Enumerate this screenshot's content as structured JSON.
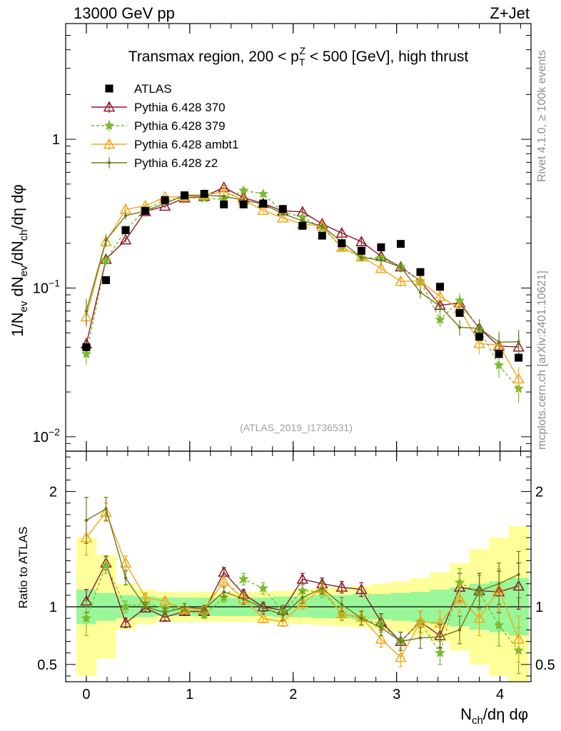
{
  "header": {
    "left": "13000 GeV pp",
    "right": "Z+Jet"
  },
  "side_labels": {
    "rivet": "Rivet 4.1.0, ≥ 100k events",
    "mcplots": "mcplots.cern.ch [arXiv:2401.10621]"
  },
  "main_title": {
    "prefix": "Transmax region, 200 < p",
    "sub": "T",
    "sup": "Z",
    "suffix": " < 500 [GeV], high thrust"
  },
  "y_label_main": {
    "a": "1/N",
    "a_sub": "ev",
    "b": " dN",
    "b_sub": "ev",
    "c": "/dN",
    "c_sub": "ch",
    "d": "/dη dφ"
  },
  "y_label_ratio": "Ratio to ATLAS",
  "x_label": {
    "n": "N",
    "sub": "ch",
    "rest": "/dη dφ"
  },
  "watermark": "(ATLAS_2019_I1736531)",
  "legend": [
    {
      "label": "ATLAS",
      "color": "#000000"
    },
    {
      "label": "Pythia 6.428 370",
      "color": "#8b1a2b"
    },
    {
      "label": "Pythia 6.428 379",
      "color": "#7cba2c"
    },
    {
      "label": "Pythia 6.428 ambt1",
      "color": "#f0a81a"
    },
    {
      "label": "Pythia 6.428 z2",
      "color": "#6b7a1a"
    }
  ],
  "chart_data": {
    "type": "line",
    "x": [
      0.0,
      0.19,
      0.38,
      0.57,
      0.76,
      0.95,
      1.14,
      1.33,
      1.52,
      1.71,
      1.9,
      2.09,
      2.28,
      2.47,
      2.66,
      2.85,
      3.04,
      3.23,
      3.42,
      3.61,
      3.8,
      3.99,
      4.18
    ],
    "x_range": [
      -0.2,
      4.3
    ],
    "x_ticks": [
      0,
      1,
      2,
      3,
      4
    ],
    "y_scale": "log",
    "y_range": [
      0.008,
      6
    ],
    "y_ticks": [
      {
        "v": 0.01,
        "base": "10",
        "exp": "−2"
      },
      {
        "v": 0.1,
        "base": "10",
        "exp": "−1"
      },
      {
        "v": 1,
        "base": "1",
        "exp": ""
      }
    ],
    "ratio_range": [
      0.35,
      2.35
    ],
    "ratio_ticks": [
      0.5,
      1,
      2
    ],
    "reference": {
      "name": "ATLAS",
      "values": [
        0.04,
        0.113,
        0.245,
        0.33,
        0.39,
        0.42,
        0.43,
        0.365,
        0.365,
        0.37,
        0.34,
        0.262,
        0.225,
        0.2,
        0.178,
        0.188,
        0.198,
        0.128,
        0.102,
        0.068,
        0.047,
        0.036,
        0.034
      ],
      "stat_band": [
        0.15,
        0.12,
        0.1,
        0.09,
        0.08,
        0.08,
        0.08,
        0.08,
        0.08,
        0.08,
        0.09,
        0.09,
        0.1,
        0.1,
        0.11,
        0.11,
        0.12,
        0.13,
        0.15,
        0.17,
        0.2,
        0.22,
        0.25
      ],
      "total_band": [
        0.6,
        0.45,
        0.2,
        0.15,
        0.13,
        0.13,
        0.13,
        0.13,
        0.13,
        0.13,
        0.14,
        0.15,
        0.16,
        0.17,
        0.18,
        0.2,
        0.22,
        0.25,
        0.3,
        0.38,
        0.5,
        0.6,
        0.7
      ]
    },
    "series": [
      {
        "name": "Pythia 6.428 370",
        "color": "#8b1a2b",
        "dash": "",
        "marker": "triangle-open",
        "ratio": [
          1.05,
          1.38,
          0.86,
          0.99,
          0.91,
          0.96,
          0.96,
          1.3,
          1.11,
          1.0,
          0.97,
          1.24,
          1.2,
          1.17,
          1.15,
          0.87,
          0.7,
          0.87,
          0.75,
          1.17,
          1.14,
          1.13,
          1.18
        ],
        "err": [
          0.1,
          0.06,
          0.04,
          0.03,
          0.03,
          0.03,
          0.03,
          0.04,
          0.04,
          0.04,
          0.04,
          0.05,
          0.05,
          0.05,
          0.06,
          0.07,
          0.08,
          0.09,
          0.1,
          0.12,
          0.15,
          0.18,
          0.2
        ]
      },
      {
        "name": "Pythia 6.428 379",
        "color": "#7cba2c",
        "dash": "4,3",
        "marker": "star",
        "ratio": [
          0.9,
          1.36,
          1.0,
          1.03,
          0.99,
          0.97,
          0.93,
          1.08,
          1.24,
          1.16,
          0.96,
          1.14,
          1.13,
          0.94,
          0.9,
          0.85,
          0.7,
          0.87,
          0.6,
          1.21,
          1.12,
          0.84,
          0.62
        ],
        "err": [
          0.15,
          0.07,
          0.05,
          0.04,
          0.03,
          0.03,
          0.03,
          0.04,
          0.05,
          0.05,
          0.05,
          0.05,
          0.05,
          0.06,
          0.06,
          0.07,
          0.08,
          0.09,
          0.1,
          0.12,
          0.15,
          0.18,
          0.2
        ]
      },
      {
        "name": "Pythia 6.428 ambt1",
        "color": "#f0a81a",
        "dash": "",
        "marker": "triangle-open",
        "ratio": [
          1.6,
          1.82,
          1.38,
          1.08,
          1.05,
          0.98,
          0.98,
          1.22,
          1.07,
          0.9,
          0.87,
          1.03,
          1.16,
          0.94,
          0.91,
          0.72,
          0.56,
          0.87,
          0.86,
          1.07,
          0.9,
          1.15,
          0.72
        ],
        "err": [
          0.15,
          0.08,
          0.06,
          0.04,
          0.03,
          0.03,
          0.03,
          0.04,
          0.04,
          0.04,
          0.04,
          0.05,
          0.05,
          0.05,
          0.06,
          0.07,
          0.08,
          0.09,
          0.1,
          0.12,
          0.15,
          0.18,
          0.2
        ]
      },
      {
        "name": "Pythia 6.428 z2",
        "color": "#6b7a1a",
        "dash": "",
        "marker": "dot",
        "ratio": [
          1.75,
          1.85,
          1.25,
          1.0,
          0.95,
          1.0,
          0.98,
          1.13,
          1.07,
          0.99,
          0.93,
          1.08,
          1.16,
          1.02,
          0.9,
          0.82,
          0.7,
          0.73,
          0.74,
          0.8,
          1.14,
          1.2,
          1.28
        ],
        "err": [
          0.2,
          0.1,
          0.06,
          0.04,
          0.04,
          0.03,
          0.03,
          0.04,
          0.05,
          0.05,
          0.05,
          0.05,
          0.05,
          0.06,
          0.06,
          0.07,
          0.08,
          0.09,
          0.1,
          0.12,
          0.15,
          0.18,
          0.2
        ]
      }
    ]
  }
}
